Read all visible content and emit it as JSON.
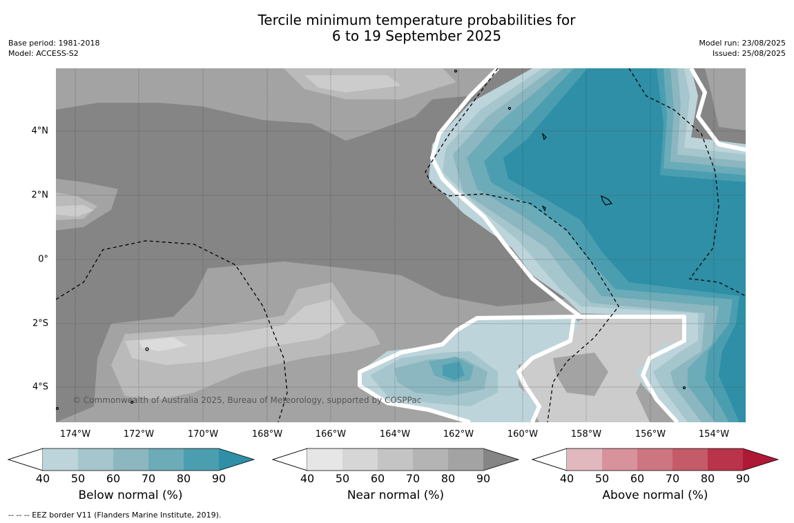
{
  "title": {
    "line1": "Tercile minimum temperature probabilities for",
    "line2": "6 to 19 September 2025"
  },
  "meta_left": {
    "base_period": "Base period: 1981-2018",
    "model": "Model: ACCESS-S2"
  },
  "meta_right": {
    "model_run": "Model run: 23/08/2025",
    "issued": "Issued: 25/08/2025"
  },
  "map": {
    "latitude_labels": [
      "4°N",
      "2°N",
      "0°",
      "2°S",
      "4°S"
    ],
    "longitude_labels": [
      "174°W",
      "172°W",
      "170°W",
      "168°W",
      "166°W",
      "164°W",
      "162°W",
      "160°W",
      "158°W",
      "156°W",
      "154°W"
    ],
    "copyright": "© Commonwealth of Australia 2025, Bureau of Meteorology, supported by COSPPac",
    "colors": {
      "near_normal_90": "#858585",
      "near_normal_80": "#a3a3a3",
      "near_normal_70": "#bababa",
      "near_normal_60": "#cccccc",
      "near_normal_50": "#dcdcdc",
      "below_normal_40": "#bcd4da",
      "below_normal_50": "#a5c6cc",
      "below_normal_60": "#8cb7c0",
      "below_normal_70": "#6cabb8",
      "below_normal_80": "#4a9eb0",
      "below_normal_90": "#2e8fa6"
    }
  },
  "legends": [
    {
      "label": "Below normal (%)",
      "ticks": [
        "40",
        "50",
        "60",
        "70",
        "80",
        "90"
      ],
      "colors": [
        "#bcd4da",
        "#a5c6cc",
        "#8cb7c0",
        "#6cabb8",
        "#4a9eb0",
        "#2e8fa6"
      ]
    },
    {
      "label": "Near normal (%)",
      "ticks": [
        "40",
        "50",
        "60",
        "70",
        "80",
        "90"
      ],
      "colors": [
        "#e6e6e6",
        "#d6d6d6",
        "#c4c4c4",
        "#b4b4b4",
        "#a3a3a3",
        "#858585"
      ]
    },
    {
      "label": "Above normal (%)",
      "ticks": [
        "40",
        "50",
        "60",
        "70",
        "80",
        "90"
      ],
      "colors": [
        "#e2b8bf",
        "#d8929c",
        "#cd7580",
        "#c55a69",
        "#b9334a",
        "#ad1a36"
      ]
    }
  ],
  "footnote": "--  --  -- EEZ border V11 (Flanders Marine Institute, 2019)."
}
